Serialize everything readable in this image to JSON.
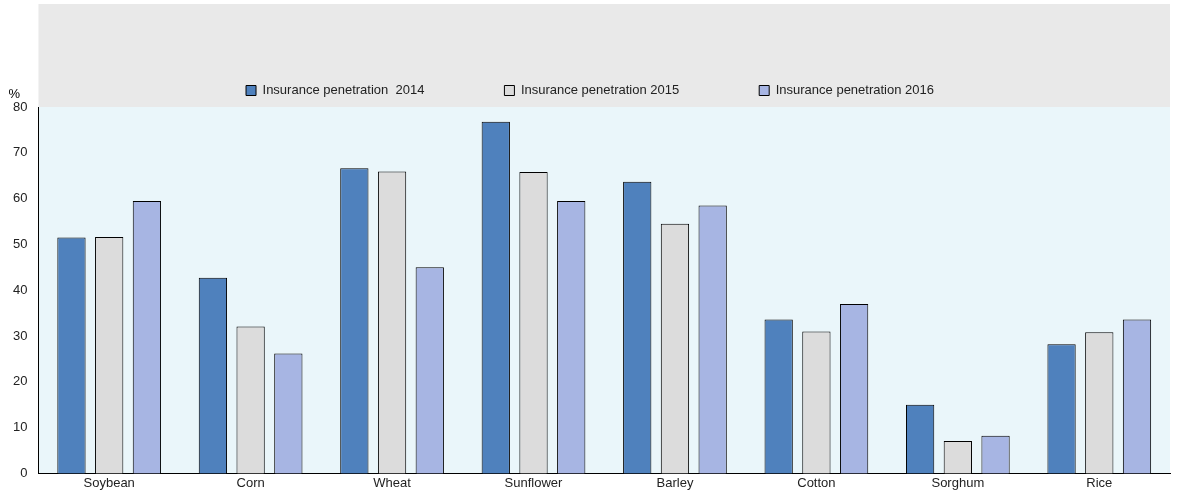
{
  "chart_data": {
    "type": "bar",
    "ylabel": "%",
    "categories": [
      "Soybean",
      "Corn",
      "Wheat",
      "Sunflower",
      "Barley",
      "Cotton",
      "Sorghum",
      "Rice"
    ],
    "series": [
      {
        "name": "Insurance penetration  2014",
        "color": "#4f81bd",
        "values": [
          51.5,
          42.7,
          66.6,
          76.8,
          63.7,
          33.6,
          15.0,
          28.2
        ]
      },
      {
        "name": "Insurance penetration 2015",
        "color": "#dcdcdc",
        "values": [
          51.6,
          32.1,
          65.9,
          65.8,
          54.5,
          31.0,
          7.1,
          30.8
        ]
      },
      {
        "name": "Insurance penetration 2016",
        "color": "#a7b5e3",
        "values": [
          59.5,
          26.2,
          45.0,
          59.5,
          58.5,
          37.0,
          8.2,
          33.6
        ]
      }
    ],
    "ylim": [
      0,
      80
    ],
    "yticks": [
      0,
      10,
      20,
      30,
      40,
      50,
      60,
      70,
      80
    ],
    "grid": false,
    "legend": "top"
  }
}
